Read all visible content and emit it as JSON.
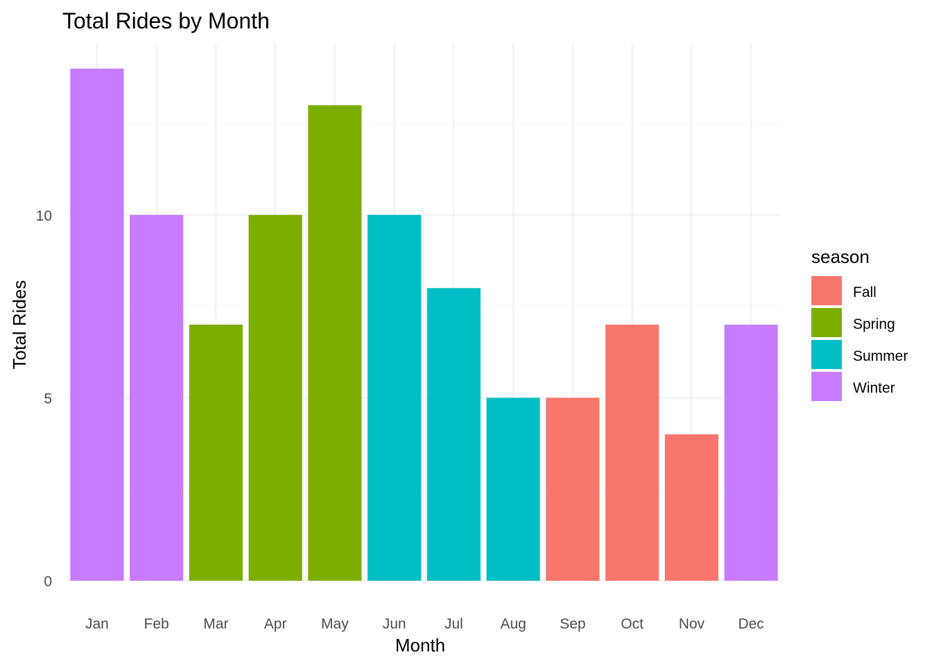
{
  "chart_data": {
    "type": "bar",
    "title": "Total Rides by Month",
    "xlabel": "Month",
    "ylabel": "Total Rides",
    "categories": [
      "Jan",
      "Feb",
      "Mar",
      "Apr",
      "May",
      "Jun",
      "Jul",
      "Aug",
      "Sep",
      "Oct",
      "Nov",
      "Dec"
    ],
    "values": [
      14,
      10,
      7,
      10,
      13,
      10,
      8,
      5,
      5,
      7,
      4,
      7
    ],
    "fill_group": [
      "Winter",
      "Winter",
      "Spring",
      "Spring",
      "Spring",
      "Summer",
      "Summer",
      "Summer",
      "Fall",
      "Fall",
      "Fall",
      "Winter"
    ],
    "ylim": [
      0,
      14.7
    ],
    "yticks": [
      0,
      5,
      10
    ],
    "grid": true,
    "legend": {
      "title": "season",
      "position": "right",
      "entries": [
        {
          "label": "Fall",
          "color": "#F8766D"
        },
        {
          "label": "Spring",
          "color": "#7CAE00"
        },
        {
          "label": "Summer",
          "color": "#00BFC4"
        },
        {
          "label": "Winter",
          "color": "#C77CFF"
        }
      ]
    }
  }
}
